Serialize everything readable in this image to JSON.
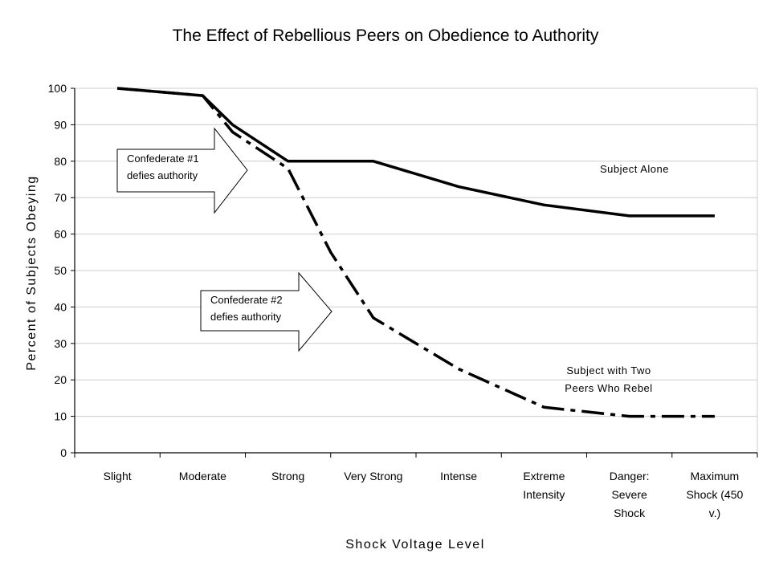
{
  "chart_data": {
    "type": "line",
    "title": "The Effect of Rebellious Peers on Obedience to Authority",
    "xlabel": "Shock Voltage Level",
    "ylabel": "Percent of Subjects Obeying",
    "ylim": [
      0,
      100
    ],
    "yticks": [
      0,
      10,
      20,
      30,
      40,
      50,
      60,
      70,
      80,
      90,
      100
    ],
    "grid": true,
    "categories": [
      [
        "Slight"
      ],
      [
        "Moderate"
      ],
      [
        "Strong"
      ],
      [
        "Very Strong"
      ],
      [
        "Intense"
      ],
      [
        "Extreme",
        "Intensity"
      ],
      [
        "Danger:",
        "Severe",
        "Shock"
      ],
      [
        "Maximum",
        "Shock (450",
        "v.)"
      ]
    ],
    "series": [
      {
        "name": "Subject Alone",
        "style": "solid",
        "x": [
          0,
          1,
          1.35,
          2,
          3,
          4,
          5,
          6,
          7
        ],
        "values": [
          100,
          98,
          90,
          80,
          80,
          73,
          68,
          65,
          65
        ]
      },
      {
        "name": "Subject with Two Peers Who Rebel",
        "style": "dash-dot",
        "x": [
          0,
          1,
          1.35,
          2,
          2.5,
          3,
          4,
          5,
          6,
          7
        ],
        "values": [
          100,
          98,
          88,
          78,
          55,
          37,
          23,
          12.5,
          10,
          10
        ]
      }
    ],
    "series_labels": [
      {
        "lines": [
          "Subject Alone"
        ]
      },
      {
        "lines": [
          "Subject with Two",
          "Peers Who Rebel"
        ]
      }
    ],
    "annotations": [
      {
        "lines": [
          "Confederate #1",
          "defies authority"
        ]
      },
      {
        "lines": [
          "Confederate #2",
          "defies authority"
        ]
      }
    ],
    "colors": {
      "line": "#000000",
      "grid": "#cccccc",
      "background": "#ffffff"
    }
  }
}
